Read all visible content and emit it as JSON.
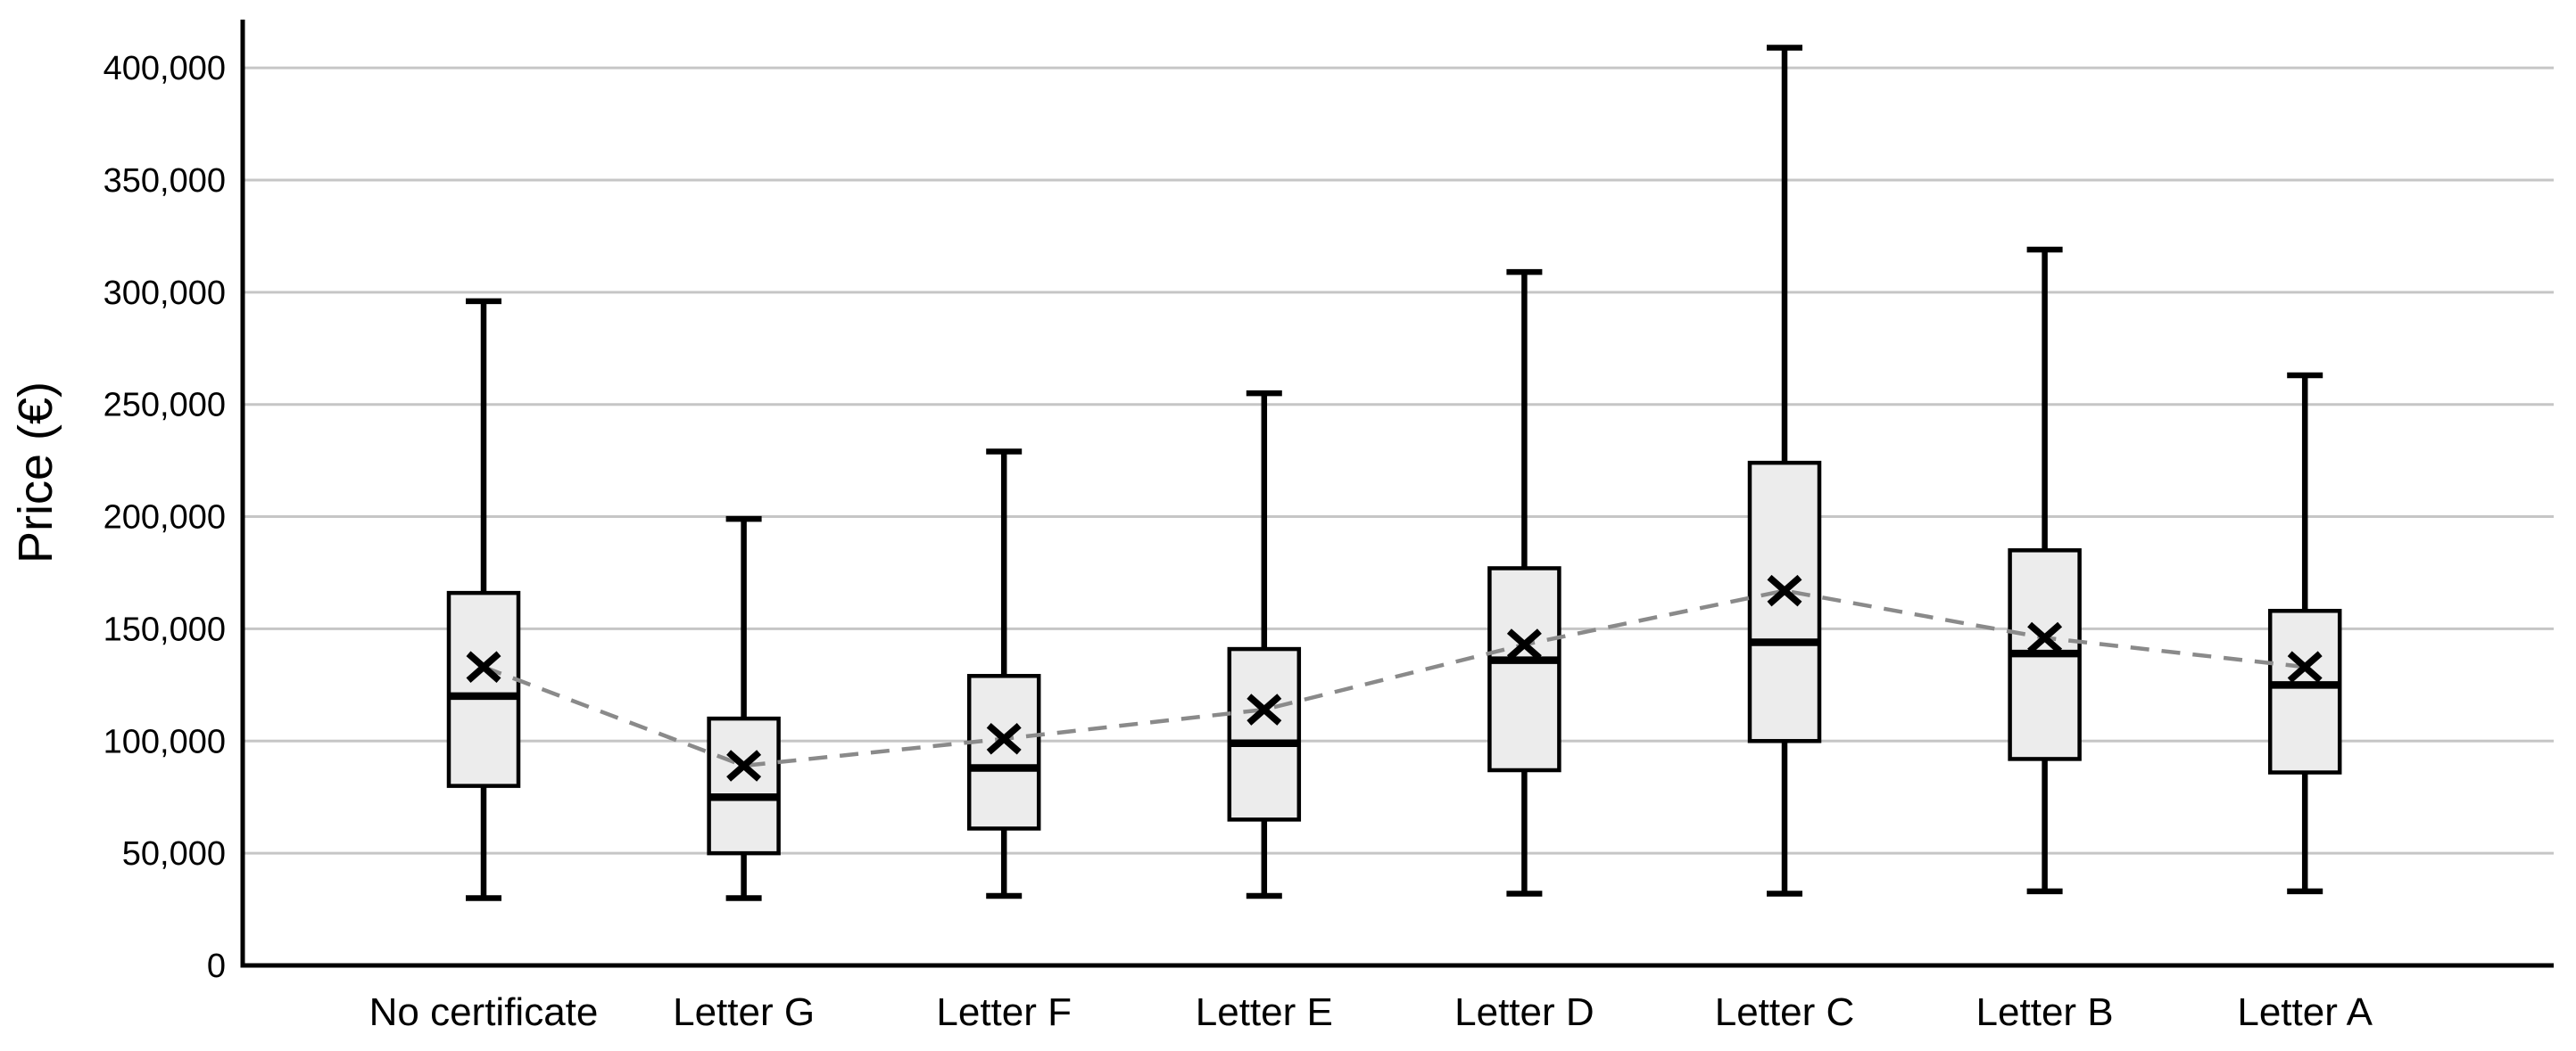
{
  "page": {
    "background": "#ffffff"
  },
  "chart_data": {
    "type": "boxplot",
    "title": "",
    "xlabel": "",
    "ylabel": "Price (€)",
    "categories": [
      "No certificate",
      "Letter G",
      "Letter F",
      "Letter E",
      "Letter D",
      "Letter C",
      "Letter B",
      "Letter A"
    ],
    "series": [
      {
        "name": "No certificate",
        "min": 30000,
        "q1": 80000,
        "median": 120000,
        "q3": 166000,
        "max": 296000,
        "mean": 133000
      },
      {
        "name": "Letter G",
        "min": 30000,
        "q1": 50000,
        "median": 75000,
        "q3": 110000,
        "max": 199000,
        "mean": 89000
      },
      {
        "name": "Letter F",
        "min": 31000,
        "q1": 61000,
        "median": 88000,
        "q3": 129000,
        "max": 229000,
        "mean": 101000
      },
      {
        "name": "Letter E",
        "min": 31000,
        "q1": 65000,
        "median": 99000,
        "q3": 141000,
        "max": 255000,
        "mean": 114000
      },
      {
        "name": "Letter D",
        "min": 32000,
        "q1": 87000,
        "median": 136000,
        "q3": 177000,
        "max": 309000,
        "mean": 143000
      },
      {
        "name": "Letter C",
        "min": 32000,
        "q1": 100000,
        "median": 144000,
        "q3": 224000,
        "max": 409000,
        "mean": 167000
      },
      {
        "name": "Letter B",
        "min": 33000,
        "q1": 92000,
        "median": 139000,
        "q3": 185000,
        "max": 319000,
        "mean": 146000
      },
      {
        "name": "Letter A",
        "min": 33000,
        "q1": 86000,
        "median": 125000,
        "q3": 158000,
        "max": 263000,
        "mean": 133000
      }
    ],
    "mean_marker": "x-cross",
    "mean_line": {
      "show": true,
      "style": "dashed"
    },
    "ylim": [
      0,
      420000
    ],
    "ytick_step": 50000,
    "yticks": [
      {
        "value": 0,
        "label": "0"
      },
      {
        "value": 50000,
        "label": "50,000"
      },
      {
        "value": 100000,
        "label": "100,000"
      },
      {
        "value": 150000,
        "label": "150,000"
      },
      {
        "value": 200000,
        "label": "200,000"
      },
      {
        "value": 250000,
        "label": "250,000"
      },
      {
        "value": 300000,
        "label": "300,000"
      },
      {
        "value": 350000,
        "label": "350,000"
      },
      {
        "value": 400000,
        "label": "400,000"
      }
    ],
    "grid": "horizontal",
    "legend": "none",
    "colors": {
      "background": "#ffffff",
      "box_fill": "#ececec",
      "box_border": "#000000",
      "whisker": "#000000",
      "median": "#000000",
      "mean_marker": "#000000",
      "mean_line": "#8a8a8a",
      "gridline": "#c6c6c6",
      "axis": "#000000",
      "text": "#000000"
    }
  }
}
